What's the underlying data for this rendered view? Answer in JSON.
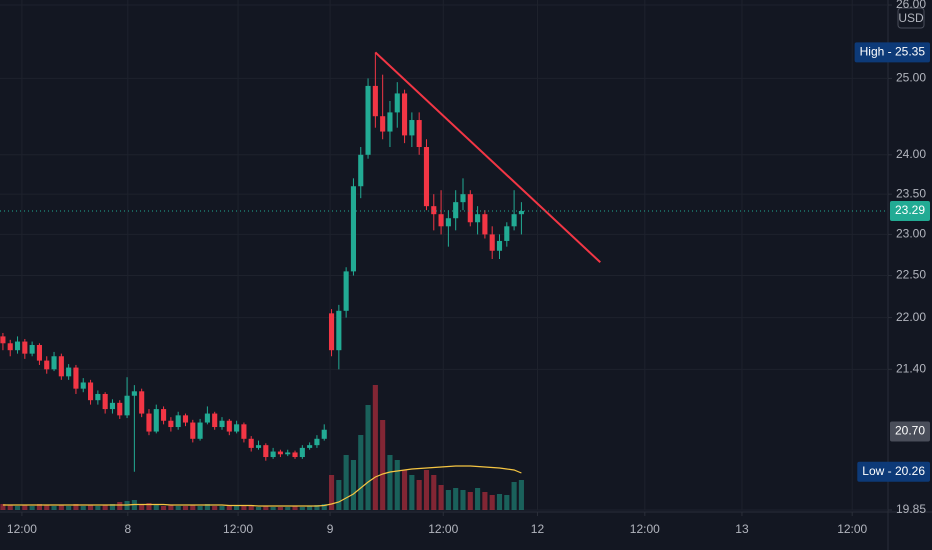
{
  "chart_data": {
    "type": "candlestick",
    "log_scale": true,
    "grid": true,
    "background": "#131722",
    "up_color": "#22ab94",
    "down_color": "#f23645",
    "open": [
      21.78,
      21.7,
      21.62,
      21.72,
      21.58,
      21.68,
      21.5,
      21.4,
      21.55,
      21.32,
      21.42,
      21.18,
      21.25,
      21.05,
      21.12,
      20.95,
      21.02,
      20.88,
      21.1,
      21.15,
      20.9,
      20.7,
      20.95,
      20.82,
      20.75,
      20.88,
      20.8,
      20.62,
      20.8,
      20.9,
      20.75,
      20.82,
      20.7,
      20.78,
      20.62,
      20.52,
      20.55,
      20.42,
      20.48,
      20.45,
      20.47,
      20.42,
      20.52,
      20.55,
      20.62,
      22.05,
      21.62,
      22.08,
      22.55,
      23.6,
      24.0,
      24.9,
      24.5,
      24.3,
      24.55,
      24.8,
      24.25,
      24.45,
      24.1,
      23.35,
      23.25,
      23.1,
      23.2,
      23.4,
      23.5,
      23.15,
      23.25,
      23.0,
      22.8,
      22.92,
      23.1,
      23.25
    ],
    "high": [
      21.82,
      21.74,
      21.78,
      21.75,
      21.72,
      21.7,
      21.55,
      21.6,
      21.58,
      21.46,
      21.45,
      21.3,
      21.28,
      21.16,
      21.14,
      21.06,
      21.05,
      21.31,
      21.22,
      21.18,
      20.95,
      21.0,
      20.98,
      20.86,
      20.92,
      20.9,
      20.83,
      20.84,
      20.98,
      20.92,
      20.86,
      20.84,
      20.82,
      20.8,
      20.65,
      20.6,
      20.57,
      20.52,
      20.5,
      20.5,
      20.49,
      20.55,
      20.58,
      20.66,
      20.78,
      22.1,
      22.15,
      22.6,
      23.7,
      24.1,
      25.0,
      25.35,
      25.05,
      24.7,
      24.95,
      24.85,
      24.55,
      24.55,
      24.2,
      23.5,
      23.55,
      23.3,
      23.55,
      23.7,
      23.55,
      23.35,
      23.3,
      23.1,
      23.0,
      23.15,
      23.55,
      23.4
    ],
    "low": [
      21.62,
      21.55,
      21.58,
      21.52,
      21.55,
      21.45,
      21.35,
      21.38,
      21.28,
      21.28,
      21.12,
      21.14,
      21.0,
      21.0,
      20.9,
      20.9,
      20.84,
      20.85,
      20.26,
      20.86,
      20.66,
      20.68,
      20.78,
      20.7,
      20.72,
      20.76,
      20.58,
      20.6,
      20.78,
      20.72,
      20.72,
      20.66,
      20.68,
      20.58,
      20.48,
      20.5,
      20.38,
      20.4,
      20.42,
      20.43,
      20.4,
      20.4,
      20.5,
      20.52,
      20.6,
      21.55,
      21.4,
      22.0,
      22.5,
      23.45,
      23.95,
      24.35,
      24.2,
      24.1,
      24.35,
      24.15,
      24.1,
      24.0,
      23.3,
      23.05,
      23.0,
      22.85,
      23.05,
      23.3,
      23.1,
      23.0,
      22.95,
      22.7,
      22.7,
      22.85,
      23.05,
      23.0
    ],
    "close": [
      21.7,
      21.62,
      21.72,
      21.58,
      21.68,
      21.5,
      21.4,
      21.55,
      21.32,
      21.42,
      21.18,
      21.25,
      21.05,
      21.12,
      20.95,
      21.02,
      20.88,
      21.1,
      21.15,
      20.9,
      20.7,
      20.95,
      20.82,
      20.75,
      20.88,
      20.8,
      20.62,
      20.8,
      20.9,
      20.75,
      20.82,
      20.7,
      20.78,
      20.62,
      20.52,
      20.55,
      20.42,
      20.48,
      20.45,
      20.47,
      20.42,
      20.52,
      20.55,
      20.62,
      20.72,
      21.62,
      22.08,
      22.55,
      23.6,
      24.0,
      24.9,
      24.5,
      24.3,
      24.55,
      24.8,
      24.25,
      24.45,
      24.1,
      23.35,
      23.25,
      23.1,
      23.2,
      23.4,
      23.5,
      23.15,
      23.25,
      23.0,
      22.8,
      22.92,
      23.1,
      23.25,
      23.29
    ],
    "volume": {
      "lim": [
        0,
        130
      ],
      "ma_color": "#f5c542",
      "values": [
        6,
        5,
        4,
        5,
        4,
        6,
        5,
        4,
        5,
        4,
        6,
        4,
        5,
        4,
        5,
        6,
        8,
        9,
        10,
        6,
        7,
        5,
        4,
        5,
        4,
        4,
        5,
        4,
        6,
        4,
        4,
        5,
        4,
        4,
        5,
        3,
        4,
        3,
        3,
        3,
        4,
        3,
        4,
        5,
        6,
        35,
        30,
        55,
        50,
        75,
        105,
        125,
        90,
        55,
        50,
        40,
        35,
        30,
        40,
        35,
        25,
        20,
        22,
        20,
        18,
        22,
        18,
        15,
        16,
        15,
        28,
        30
      ],
      "ma": [
        5,
        5,
        5,
        5,
        5,
        5,
        5,
        5,
        5,
        5,
        5,
        5,
        5,
        5,
        5,
        5,
        5,
        5,
        5.5,
        5.5,
        5.5,
        5.5,
        5.5,
        5,
        5,
        5,
        5,
        5,
        5,
        5,
        5,
        4.5,
        4.5,
        4.5,
        4.5,
        4,
        4,
        4,
        4,
        4,
        4,
        4,
        4,
        4,
        4.5,
        6,
        8,
        12,
        16,
        22,
        28,
        33,
        36,
        38,
        39,
        40,
        41,
        41.5,
        42,
        42.5,
        43,
        43.5,
        44,
        44,
        44,
        43.5,
        43,
        42.5,
        42,
        41,
        40,
        37
      ]
    },
    "xlim": [
      -0.4,
      121.2
    ],
    "xticks": [
      {
        "value": 2.6,
        "label": "12:00"
      },
      {
        "value": 17.1,
        "label": "8"
      },
      {
        "value": 32.2,
        "label": "12:00"
      },
      {
        "value": 44.8,
        "label": "9"
      },
      {
        "value": 60.3,
        "label": "12:00"
      },
      {
        "value": 73.2,
        "label": "12"
      },
      {
        "value": 87.9,
        "label": "12:00"
      },
      {
        "value": 101.2,
        "label": "13"
      },
      {
        "value": 116.3,
        "label": "12:00"
      }
    ],
    "ylim": [
      19.85,
      26.07
    ],
    "yticks": [
      {
        "value": 26,
        "label": "26.00"
      },
      {
        "value": 25,
        "label": "25.00"
      },
      {
        "value": 24,
        "label": "24.00"
      },
      {
        "value": 23.5,
        "label": "23.50"
      },
      {
        "value": 23,
        "label": "23.00"
      },
      {
        "value": 22.5,
        "label": "22.50"
      },
      {
        "value": 22,
        "label": "22.00"
      },
      {
        "value": 21.4,
        "label": "21.40"
      },
      {
        "value": 19.85,
        "label": "19.85"
      }
    ],
    "currency": "USD",
    "price_tags": [
      {
        "value": 25.35,
        "label": "High - 25.35",
        "color": "#0d3a78"
      },
      {
        "value": 23.29,
        "label": "23.29",
        "color": "#22ab94",
        "dotted_line": true
      },
      {
        "value": 20.7,
        "label": "20.70",
        "color": "#4a4e5a"
      },
      {
        "value": 20.26,
        "label": "Low - 20.26",
        "color": "#0d3a78"
      }
    ],
    "trendline": {
      "x": [
        51,
        81.8
      ],
      "y": [
        25.35,
        22.66
      ],
      "color": "#f23645"
    }
  }
}
